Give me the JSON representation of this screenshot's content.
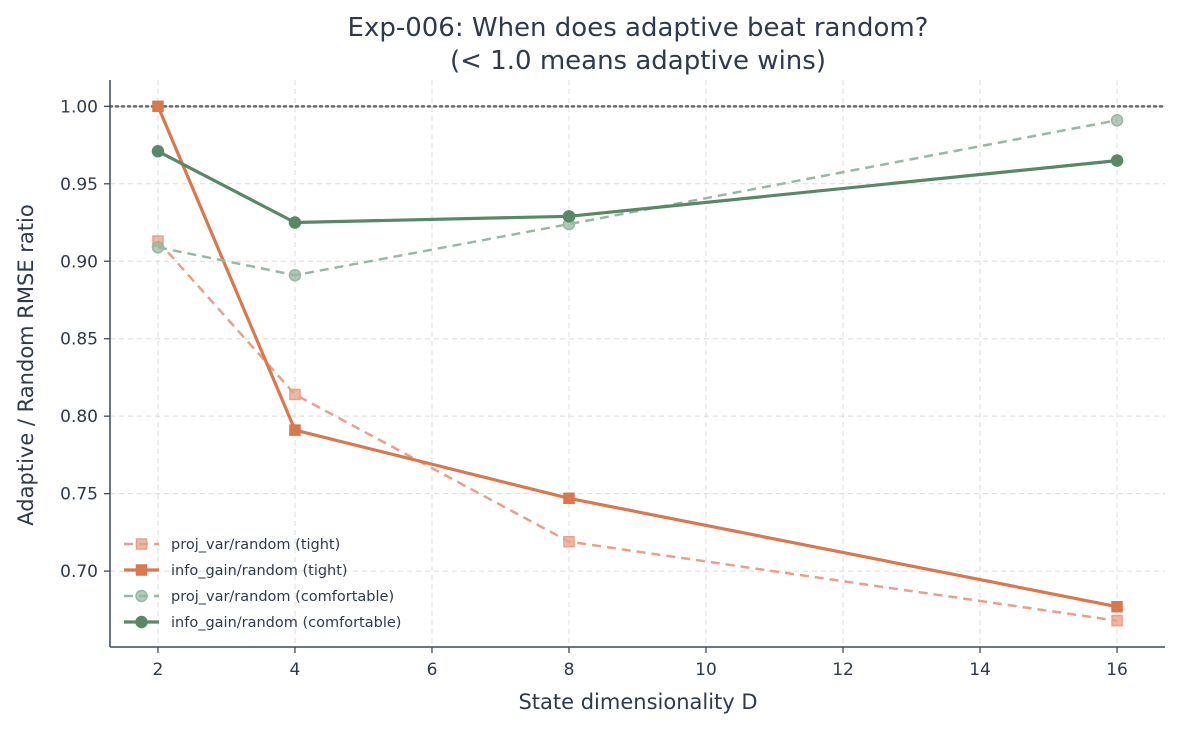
{
  "chart_data": {
    "type": "line",
    "title": "Exp-006: When does adaptive beat random?",
    "subtitle": "(< 1.0 means adaptive wins)",
    "xlabel": "State dimensionality D",
    "ylabel": "Adaptive / Random RMSE ratio",
    "xlim": [
      1.3,
      16.7
    ],
    "ylim": [
      0.651,
      1.017
    ],
    "xticks": [
      2,
      4,
      6,
      8,
      10,
      12,
      14,
      16
    ],
    "yticks": [
      0.7,
      0.75,
      0.8,
      0.85,
      0.9,
      0.95,
      1.0
    ],
    "x": [
      2,
      4,
      8,
      16
    ],
    "reference_line": {
      "y": 1.0,
      "style": "dotted",
      "color": "#6b6b6b"
    },
    "grid": true,
    "legend_position": "lower-left",
    "series": [
      {
        "name": "proj_var/random (tight)",
        "values": [
          0.913,
          0.814,
          0.719,
          0.668
        ],
        "color": "#e8a088",
        "line_style": "dashed",
        "marker": "square"
      },
      {
        "name": "info_gain/random (tight)",
        "values": [
          1.0,
          0.791,
          0.747,
          0.677
        ],
        "color": "#d9774f",
        "line_style": "solid",
        "marker": "square"
      },
      {
        "name": "proj_var/random (comfortable)",
        "values": [
          0.909,
          0.891,
          0.924,
          0.991
        ],
        "color": "#97b8a2",
        "line_style": "dashed",
        "marker": "circle"
      },
      {
        "name": "info_gain/random (comfortable)",
        "values": [
          0.971,
          0.925,
          0.929,
          0.965
        ],
        "color": "#5a8866",
        "line_style": "solid",
        "marker": "circle"
      }
    ]
  }
}
